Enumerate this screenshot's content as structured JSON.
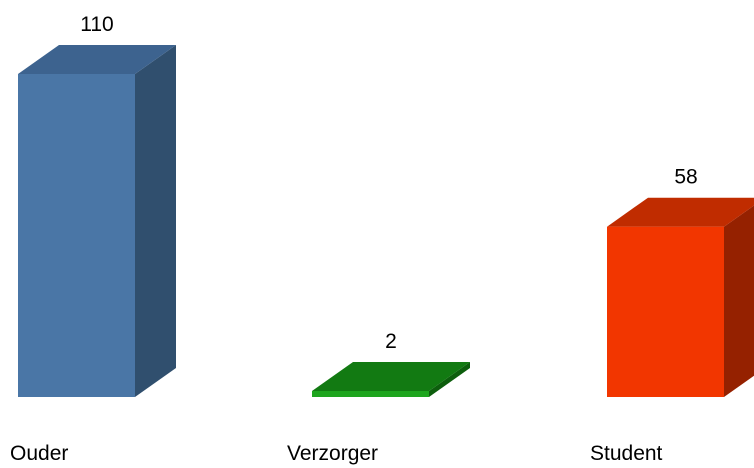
{
  "chart_data": {
    "type": "bar",
    "style": "3d-column",
    "categories": [
      "Ouder",
      "Verzorger",
      "Student"
    ],
    "values": [
      110,
      2,
      58
    ],
    "colors": [
      {
        "front": "#4a76a6",
        "top": "#3d638f",
        "side": "#304f6e"
      },
      {
        "front": "#1ea51e",
        "top": "#127a12",
        "side": "#0d5e0d"
      },
      {
        "front": "#f23600",
        "top": "#c02c00",
        "side": "#952100"
      }
    ],
    "data_labels": [
      "110",
      "2",
      "58"
    ],
    "title": "",
    "xlabel": "",
    "ylabel": "",
    "ylim": [
      0,
      110
    ],
    "grid": false,
    "legend": "none"
  }
}
